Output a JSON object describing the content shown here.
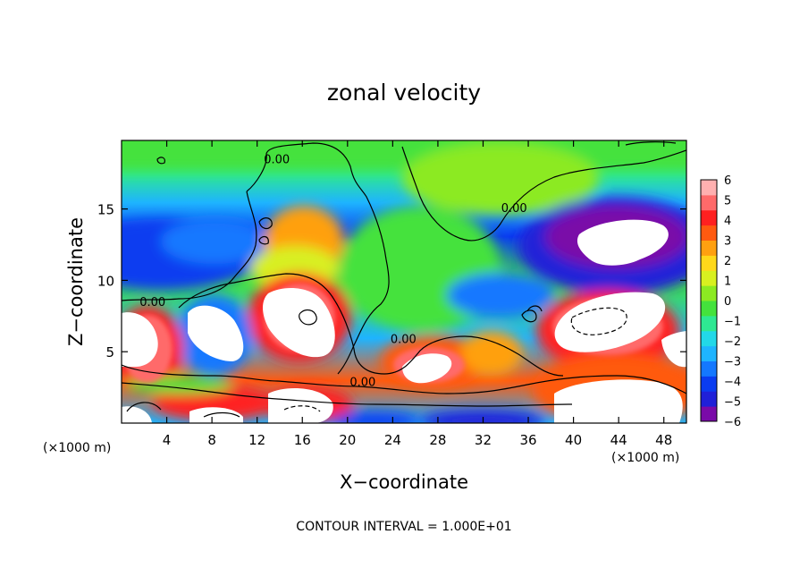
{
  "chart_data": {
    "type": "heatmap",
    "title": "zonal velocity",
    "xlabel": "X−coordinate",
    "ylabel": "Z−coordinate",
    "x_unit_left": "(×1000 m)",
    "x_unit_right": "(×1000 m)",
    "footer": "CONTOUR INTERVAL = 1.000E+01",
    "xlim": [
      0,
      50
    ],
    "ylim": [
      0,
      19.8
    ],
    "xticks": [
      4,
      8,
      12,
      16,
      20,
      24,
      28,
      32,
      36,
      40,
      44,
      48
    ],
    "yticks": [
      5,
      10,
      15
    ],
    "colorbar": {
      "min": -6,
      "max": 6,
      "ticks": [
        6,
        5,
        4,
        3,
        2,
        1,
        0,
        -1,
        -2,
        -3,
        -4,
        -5,
        -6
      ],
      "colors": [
        "#7a0aa8",
        "#2020d8",
        "#0a3cf0",
        "#1478ff",
        "#1eb4ff",
        "#22d8e8",
        "#2ee892",
        "#44e23c",
        "#8cea22",
        "#d8f020",
        "#ffd81a",
        "#ffa010",
        "#ff5a10",
        "#ff2020",
        "#ff6a6a",
        "#ffb0b0"
      ],
      "overflow_color": "#ffffff"
    },
    "contour_labels": [
      {
        "text": "0.00",
        "x": 12.6,
        "y": 18.2
      },
      {
        "text": "0.00",
        "x": 1.6,
        "y": 8.2
      },
      {
        "text": "0.00",
        "x": 23.8,
        "y": 5.6
      },
      {
        "text": "0.00",
        "x": 20.2,
        "y": 2.6
      },
      {
        "text": "0.00",
        "x": 33.6,
        "y": 14.8
      }
    ]
  }
}
